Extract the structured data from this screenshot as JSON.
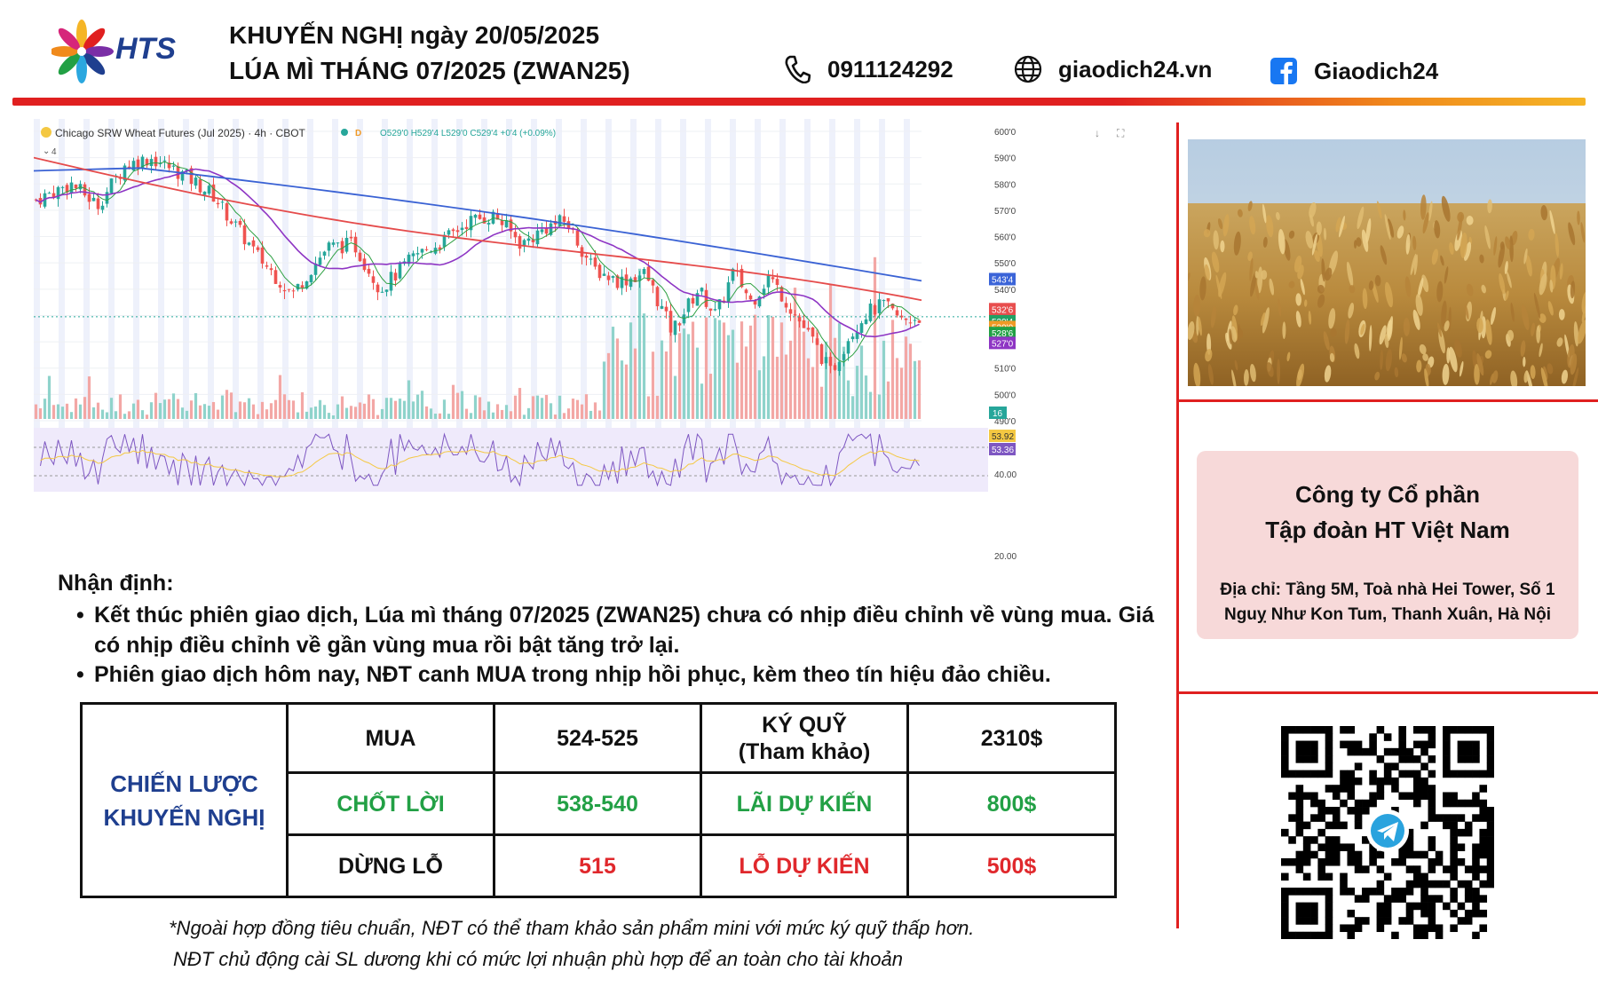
{
  "header": {
    "logo_text": "HTS",
    "title_line1": "KHUYẾN NGHỊ ngày 20/05/2025",
    "title_line2": "LÚA MÌ THÁNG 07/2025 (ZWAN25)",
    "phone": "0911124292",
    "website": "giaodich24.vn",
    "facebook": "Giaodich24",
    "icons": [
      "phone-icon",
      "globe-icon",
      "facebook-icon"
    ]
  },
  "chart": {
    "symbol_title": "Chicago SRW Wheat Futures (Jul 2025) · 4h · CBOT",
    "ohlc": "O529'0 H529'4 L529'0 C529'4 +0'4 (+0.09%)",
    "interval_badge": "D",
    "indicator_badge": "4",
    "price_axis_ticks": [
      "600'0",
      "590'0",
      "580'0",
      "570'0",
      "560'0",
      "550'0",
      "540'0",
      "510'0",
      "500'0",
      "490'0"
    ],
    "price_labels": [
      {
        "text": "543'4",
        "color": "#3b64d8",
        "price": 543.5
      },
      {
        "text": "532'6",
        "color": "#e84e4e",
        "price": 532.75
      },
      {
        "text": "529'4",
        "color": "#22a064",
        "price": 529.5
      },
      {
        "text": "529'0",
        "color": "#f09a26",
        "price": 529.0
      },
      {
        "text": "528'6",
        "color": "#22a045",
        "price": 528.75
      },
      {
        "text": "527'0",
        "color": "#8e35c4",
        "price": 527.0
      }
    ],
    "volume_label": "16",
    "rsi_axis_ticks": [
      "40.00",
      "20.00"
    ],
    "rsi_labels": [
      {
        "text": "53.92",
        "color": "#f4c842"
      },
      {
        "text": "53.36",
        "color": "#7e57c2"
      }
    ],
    "colors": {
      "up": "#26a69a",
      "down": "#ef5350",
      "ma_slow": "#3a62d4",
      "ma_mid": "#e54b4b",
      "ma_fast": "#8e35c4",
      "ma_green": "#2ea043"
    }
  },
  "analysis": {
    "heading": "Nhận định:",
    "bullets": [
      "Kết thúc phiên giao dịch, Lúa mì tháng 07/2025 (ZWAN25) chưa có nhịp điều chỉnh về vùng mua. Giá có nhịp điều chỉnh về gần vùng mua rồi bật tăng trở lại.",
      "Phiên giao dịch hôm nay, NĐT canh MUA trong nhịp hồi phục, kèm theo tín hiệu đảo chiều."
    ]
  },
  "strategy": {
    "label_line1": "CHIẾN LƯỢC",
    "label_line2": "KHUYẾN NGHỊ",
    "rows": [
      {
        "action": "MUA",
        "price": "524-525",
        "metric_line1": "KÝ QUỸ",
        "metric_line2": "(Tham khảo)",
        "amount": "2310$"
      },
      {
        "action": "CHỐT LỜI",
        "price": "538-540",
        "metric_line1": "LÃI DỰ KIẾN",
        "metric_line2": "",
        "amount": "800$"
      },
      {
        "action": "DỪNG LỖ",
        "price": "515",
        "metric_line1": "LỖ DỰ KIẾN",
        "metric_line2": "",
        "amount": "500$"
      }
    ]
  },
  "footnotes": [
    "*Ngoài hợp đồng tiêu chuẩn, NĐT có thể tham khảo sản phẩm mini với mức ký quỹ thấp hơn.",
    "NĐT chủ động cài SL dương khi có mức lợi nhuận phù hợp để an toàn cho tài khoản"
  ],
  "company": {
    "name_line1": "Công ty Cổ phần",
    "name_line2": "Tập đoàn HT Việt Nam",
    "address_line1": "Địa chỉ: Tầng 5M, Toà nhà Hei Tower, Số 1",
    "address_line2": "Nguỵ Như Kon Tum, Thanh Xuân, Hà Nội"
  },
  "qr": {
    "icon": "telegram-icon"
  }
}
